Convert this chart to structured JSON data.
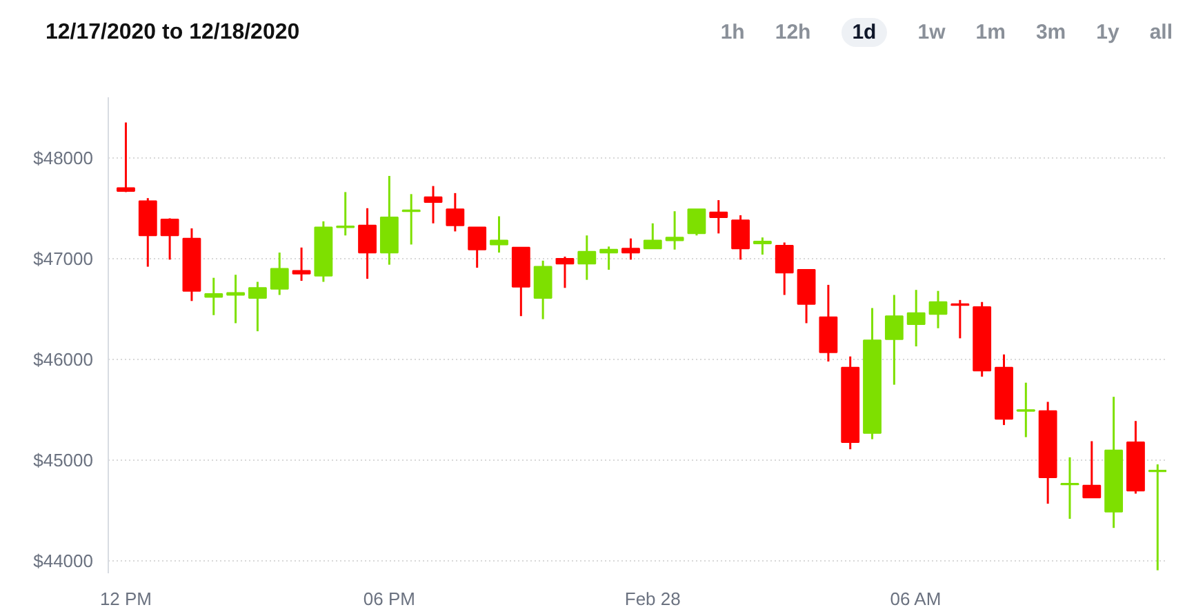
{
  "chart_data": {
    "type": "candlestick",
    "title": "12/17/2020 to 12/18/2020",
    "annotations": [
      "1h",
      "12h",
      "1d",
      "1w",
      "1m",
      "3m",
      "1y",
      "all"
    ],
    "categories": [
      "12 PM",
      null,
      null,
      null,
      null,
      null,
      null,
      null,
      null,
      null,
      null,
      null,
      "06 PM",
      null,
      null,
      null,
      null,
      null,
      null,
      null,
      null,
      null,
      null,
      null,
      "Feb 28",
      null,
      null,
      null,
      null,
      null,
      null,
      null,
      null,
      null,
      null,
      null,
      "06 AM",
      null,
      null,
      null,
      null,
      null,
      null,
      null,
      null,
      null,
      null,
      null
    ],
    "ohlc": [
      [
        47700,
        48350,
        47660,
        47670
      ],
      [
        47570,
        47600,
        46920,
        47230
      ],
      [
        47390,
        47400,
        46990,
        47230
      ],
      [
        47200,
        47300,
        46580,
        46680
      ],
      [
        46620,
        46810,
        46440,
        46650
      ],
      [
        46640,
        46840,
        46360,
        46660
      ],
      [
        46610,
        46770,
        46280,
        46710
      ],
      [
        46700,
        47060,
        46640,
        46900
      ],
      [
        46880,
        47110,
        46780,
        46850
      ],
      [
        46830,
        47370,
        46770,
        47310
      ],
      [
        47310,
        47660,
        47230,
        47320
      ],
      [
        47330,
        47500,
        46800,
        47060
      ],
      [
        47060,
        47820,
        46940,
        47410
      ],
      [
        47470,
        47640,
        47140,
        47480
      ],
      [
        47610,
        47720,
        47350,
        47560
      ],
      [
        47490,
        47650,
        47270,
        47330
      ],
      [
        47310,
        47310,
        46910,
        47090
      ],
      [
        47140,
        47420,
        47060,
        47180
      ],
      [
        47110,
        47110,
        46430,
        46720
      ],
      [
        46610,
        46980,
        46400,
        46920
      ],
      [
        47000,
        47020,
        46710,
        46950
      ],
      [
        46950,
        47230,
        46790,
        47070
      ],
      [
        47060,
        47120,
        46890,
        47090
      ],
      [
        47100,
        47200,
        46990,
        47060
      ],
      [
        47100,
        47350,
        47100,
        47180
      ],
      [
        47180,
        47470,
        47090,
        47210
      ],
      [
        47250,
        47490,
        47230,
        47490
      ],
      [
        47460,
        47580,
        47250,
        47410
      ],
      [
        47380,
        47430,
        46990,
        47100
      ],
      [
        47150,
        47210,
        47040,
        47170
      ],
      [
        47130,
        47160,
        46640,
        46860
      ],
      [
        46890,
        46890,
        46360,
        46550
      ],
      [
        46420,
        46740,
        45980,
        46070
      ],
      [
        45920,
        46030,
        45110,
        45180
      ],
      [
        45270,
        46510,
        45210,
        46190
      ],
      [
        46200,
        46640,
        45750,
        46430
      ],
      [
        46350,
        46690,
        46130,
        46460
      ],
      [
        46450,
        46680,
        46310,
        46570
      ],
      [
        46550,
        46590,
        46210,
        46540
      ],
      [
        46520,
        46570,
        45830,
        45890
      ],
      [
        45920,
        46050,
        45350,
        45410
      ],
      [
        45490,
        45770,
        45230,
        45500
      ],
      [
        45490,
        45580,
        44570,
        44830
      ],
      [
        44760,
        45030,
        44420,
        44770
      ],
      [
        44750,
        45190,
        44630,
        44630
      ],
      [
        44490,
        45630,
        44330,
        45100
      ],
      [
        45180,
        45390,
        44670,
        44700
      ],
      [
        44890,
        44960,
        43910,
        44900
      ]
    ],
    "colors": [
      "#ff0000",
      "#ff0000",
      "#ff0000",
      "#ff0000",
      "#7ee000",
      "#7ee000",
      "#7ee000",
      "#7ee000",
      "#ff0000",
      "#7ee000",
      "#7ee000",
      "#ff0000",
      "#7ee000",
      "#7ee000",
      "#ff0000",
      "#ff0000",
      "#ff0000",
      "#7ee000",
      "#ff0000",
      "#7ee000",
      "#ff0000",
      "#7ee000",
      "#7ee000",
      "#ff0000",
      "#7ee000",
      "#7ee000",
      "#7ee000",
      "#ff0000",
      "#ff0000",
      "#7ee000",
      "#ff0000",
      "#ff0000",
      "#ff0000",
      "#ff0000",
      "#7ee000",
      "#7ee000",
      "#7ee000",
      "#7ee000",
      "#ff0000",
      "#ff0000",
      "#ff0000",
      "#7ee000",
      "#ff0000",
      "#7ee000",
      "#ff0000",
      "#7ee000",
      "#ff0000",
      "#7ee000"
    ],
    "ylim": [
      43880,
      48600
    ],
    "yticks": [
      {
        "value": 44000,
        "label": "$44000"
      },
      {
        "value": 45000,
        "label": "$45000"
      },
      {
        "value": 46000,
        "label": "$46000"
      },
      {
        "value": 47000,
        "label": "$47000"
      },
      {
        "value": 48000,
        "label": "$48000"
      }
    ],
    "grid": "y"
  }
}
